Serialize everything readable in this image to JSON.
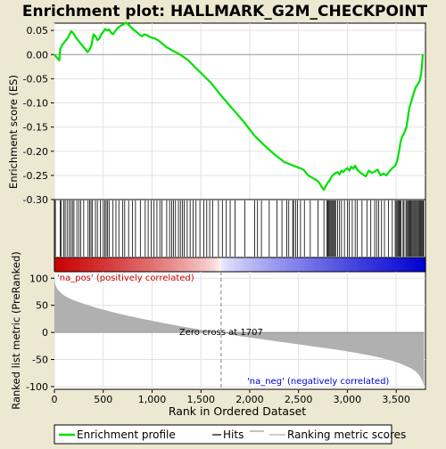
{
  "chart_data": {
    "type": "line",
    "title": "Enrichment plot: HALLMARK_G2M_CHECKPOINT",
    "es_panel": {
      "ylabel": "Enrichment score (ES)",
      "ylim": [
        -0.3,
        0.065
      ],
      "yticks": [
        0.05,
        0.0,
        -0.05,
        -0.1,
        -0.15,
        -0.2,
        -0.25,
        -0.3
      ],
      "ytick_labels": [
        "0.05",
        "0.00",
        "-0.05",
        "-0.10",
        "-0.15",
        "-0.20",
        "-0.25",
        "-0.30"
      ],
      "zero_line": 0.0,
      "curve": {
        "x": [
          0,
          20,
          50,
          60,
          80,
          100,
          120,
          140,
          150,
          170,
          190,
          220,
          260,
          300,
          340,
          360,
          380,
          400,
          420,
          440,
          460,
          480,
          500,
          520,
          540,
          560,
          580,
          600,
          620,
          650,
          680,
          710,
          730,
          760,
          790,
          820,
          850,
          880,
          900,
          920,
          950,
          980,
          1000,
          1030,
          1060,
          1090,
          1120,
          1150,
          1180,
          1210,
          1240,
          1270,
          1300,
          1330,
          1360,
          1400,
          1440,
          1480,
          1520,
          1560,
          1600,
          1640,
          1680,
          1720,
          1760,
          1800,
          1850,
          1900,
          1950,
          2000,
          2050,
          2100,
          2150,
          2200,
          2250,
          2300,
          2350,
          2400,
          2450,
          2500,
          2550,
          2600,
          2650,
          2700,
          2720,
          2740,
          2760,
          2780,
          2800,
          2820,
          2840,
          2860,
          2880,
          2900,
          2920,
          2940,
          2960,
          2980,
          3000,
          3020,
          3040,
          3060,
          3080,
          3100,
          3130,
          3160,
          3190,
          3220,
          3250,
          3280,
          3310,
          3340,
          3370,
          3400,
          3430,
          3460,
          3490,
          3510,
          3530,
          3545,
          3560,
          3575,
          3590,
          3605,
          3620,
          3635,
          3650,
          3665,
          3680,
          3695,
          3710,
          3725,
          3740,
          3755,
          3765,
          3772,
          3778
        ],
        "es": [
          0.0,
          -0.005,
          -0.012,
          0.012,
          0.02,
          0.025,
          0.03,
          0.035,
          0.04,
          0.048,
          0.045,
          0.035,
          0.025,
          0.015,
          0.005,
          0.01,
          0.02,
          0.042,
          0.038,
          0.03,
          0.033,
          0.042,
          0.047,
          0.053,
          0.05,
          0.052,
          0.045,
          0.042,
          0.048,
          0.055,
          0.06,
          0.063,
          0.066,
          0.062,
          0.055,
          0.05,
          0.045,
          0.04,
          0.038,
          0.042,
          0.04,
          0.036,
          0.035,
          0.033,
          0.03,
          0.025,
          0.02,
          0.015,
          0.012,
          0.008,
          0.005,
          0.002,
          -0.002,
          -0.006,
          -0.01,
          -0.018,
          -0.026,
          -0.034,
          -0.042,
          -0.05,
          -0.058,
          -0.068,
          -0.078,
          -0.088,
          -0.097,
          -0.107,
          -0.118,
          -0.13,
          -0.142,
          -0.155,
          -0.168,
          -0.178,
          -0.188,
          -0.197,
          -0.206,
          -0.214,
          -0.222,
          -0.226,
          -0.23,
          -0.234,
          -0.238,
          -0.25,
          -0.256,
          -0.262,
          -0.268,
          -0.275,
          -0.28,
          -0.272,
          -0.265,
          -0.26,
          -0.252,
          -0.248,
          -0.245,
          -0.243,
          -0.248,
          -0.24,
          -0.243,
          -0.238,
          -0.235,
          -0.24,
          -0.232,
          -0.236,
          -0.23,
          -0.238,
          -0.244,
          -0.248,
          -0.252,
          -0.24,
          -0.245,
          -0.242,
          -0.238,
          -0.25,
          -0.246,
          -0.25,
          -0.242,
          -0.235,
          -0.23,
          -0.22,
          -0.2,
          -0.18,
          -0.17,
          -0.165,
          -0.158,
          -0.15,
          -0.13,
          -0.11,
          -0.1,
          -0.09,
          -0.08,
          -0.07,
          -0.065,
          -0.06,
          -0.055,
          -0.04,
          -0.02,
          0.0
        ]
      }
    },
    "hits_panel": {
      "positions": [
        10,
        60,
        70,
        95,
        110,
        130,
        150,
        170,
        185,
        200,
        230,
        250,
        270,
        300,
        345,
        360,
        375,
        390,
        420,
        440,
        470,
        500,
        515,
        530,
        545,
        560,
        600,
        630,
        660,
        700,
        720,
        760,
        800,
        830,
        880,
        930,
        960,
        990,
        1020,
        1050,
        1080,
        1100,
        1150,
        1180,
        1200,
        1220,
        1240,
        1270,
        1290,
        1310,
        1330,
        1360,
        1390,
        1420,
        1450,
        1490,
        1530,
        1560,
        1590,
        1620,
        1680,
        1720,
        1760,
        1800,
        1850,
        1950,
        2050,
        2080,
        2120,
        2200,
        2280,
        2330,
        2380,
        2400,
        2440,
        2450,
        2470,
        2490,
        2520,
        2560,
        2620,
        2700,
        2760,
        2790,
        2800,
        2810,
        2820,
        2830,
        2840,
        2850,
        2860,
        2870,
        2880,
        2900,
        2920,
        2940,
        2970,
        3000,
        3020,
        3050,
        3080,
        3100,
        3150,
        3200,
        3240,
        3280,
        3300,
        3320,
        3350,
        3380,
        3420,
        3460,
        3490,
        3500,
        3510,
        3520,
        3530,
        3540,
        3550,
        3570,
        3580,
        3600,
        3610,
        3620,
        3630,
        3640,
        3650,
        3660,
        3670,
        3680,
        3690,
        3700,
        3710,
        3720,
        3730,
        3740,
        3750,
        3760,
        3770,
        3775,
        3780
      ]
    },
    "rank_panel": {
      "ylabel": "Ranked list metric (PreRanked)",
      "xlabel": "Rank in Ordered Dataset",
      "xlim": [
        0,
        3800
      ],
      "ylim": [
        -105,
        112
      ],
      "yticks": [
        100,
        50,
        0,
        -50,
        -100
      ],
      "ytick_labels": [
        "100",
        "50",
        "0",
        "-50",
        "-100"
      ],
      "xticks": [
        0,
        500,
        1000,
        1500,
        2000,
        2500,
        3000,
        3500
      ],
      "xtick_labels": [
        "0",
        "500",
        "1,000",
        "1,500",
        "2,000",
        "2,500",
        "3,000",
        "3,500"
      ],
      "zero_cross": 1707,
      "zero_cross_label": "Zero cross at 1707",
      "pos_label": "'na_pos' (positively correlated)",
      "neg_label": "'na_neg' (negatively correlated)",
      "metric_curve": {
        "rank": [
          0,
          10,
          30,
          60,
          100,
          150,
          200,
          300,
          400,
          500,
          700,
          900,
          1100,
          1300,
          1500,
          1707,
          1900,
          2100,
          2300,
          2500,
          2700,
          2900,
          3100,
          3300,
          3450,
          3550,
          3650,
          3700,
          3740,
          3770,
          3785
        ],
        "value": [
          100,
          88,
          80,
          74,
          68,
          63,
          59,
          53,
          47,
          42,
          33,
          25,
          18,
          11,
          5,
          0,
          -7,
          -12,
          -17,
          -22,
          -27,
          -32,
          -38,
          -45,
          -52,
          -58,
          -66,
          -72,
          -80,
          -90,
          -100
        ]
      }
    },
    "colors": {
      "curve": "#00e000",
      "hits": "#000000",
      "metric_fill": "#b0b0b0",
      "zero_cross_line": "#808080",
      "pos_label": "#cc0000",
      "neg_label": "#0000cc",
      "background": "#ede8d2",
      "panel": "#ffffff"
    },
    "legend": {
      "items": [
        {
          "label": "Enrichment profile",
          "style": "line",
          "color": "#00e000"
        },
        {
          "label": "Hits",
          "style": "line",
          "color": "#000000"
        },
        {
          "label": "Ranking metric scores",
          "style": "line",
          "color": "#b0b0b0"
        }
      ]
    }
  }
}
